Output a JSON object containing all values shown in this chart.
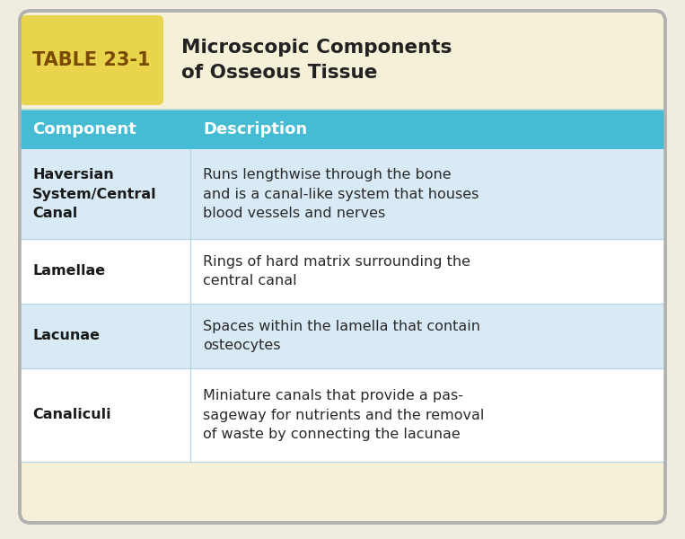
{
  "table_label": "TABLE 23-1",
  "table_title_line1": "Microscopic Components",
  "table_title_line2": "of Osseous Tissue",
  "header_col1": "Component",
  "header_col2": "Description",
  "rows": [
    {
      "component": "Haversian\nSystem/Central\nCanal",
      "description": "Runs lengthwise through the bone\nand is a canal-like system that houses\nblood vessels and nerves"
    },
    {
      "component": "Lamellae",
      "description": "Rings of hard matrix surrounding the\ncentral canal"
    },
    {
      "component": "Lacunae",
      "description": "Spaces within the lamella that contain\nosteocytes"
    },
    {
      "component": "Canaliculi",
      "description": "Miniature canals that provide a pas-\nsageway for nutrients and the removal\nof waste by connecting the lacunae"
    }
  ],
  "header_bg": "#45bcd4",
  "title_bg": "#f5f0d8",
  "label_bg": "#e8d44d",
  "outer_bg": "#f0ede0",
  "border_color": "#b0b0b0",
  "header_text_color": "#ffffff",
  "label_text_color": "#7a4a00",
  "title_text_color": "#222222",
  "component_text_color": "#1a1a1a",
  "description_text_color": "#2a2a2a",
  "row_alt1_bg": "#d8eaf5",
  "row_alt2_bg": "#ffffff",
  "divider_color": "#b8d4e0"
}
